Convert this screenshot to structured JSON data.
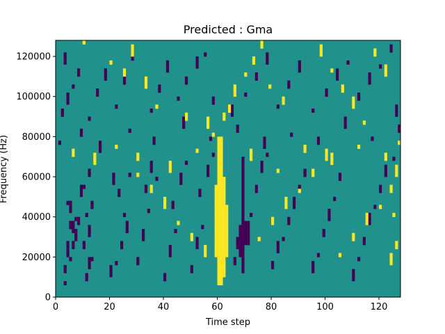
{
  "chart_data": {
    "type": "heatmap",
    "title": "Predicted : Gma",
    "xlabel": "Time step",
    "ylabel": "Frequency (Hz)",
    "xlim": [
      0,
      128
    ],
    "ylim": [
      0,
      128000
    ],
    "rows": 64,
    "cols": 128,
    "xticks": [
      0,
      20,
      40,
      60,
      80,
      100,
      120
    ],
    "yticks": [
      0,
      20000,
      40000,
      60000,
      80000,
      100000,
      120000
    ],
    "background_value": 0,
    "colors": {
      "background": "#21918c",
      "low": "#440154",
      "high": "#fde725",
      "frame": "#000000"
    },
    "grid": false,
    "high_regions": [
      {
        "x_range": [
          60,
          62
        ],
        "y_range": [
          3,
          40
        ]
      },
      {
        "x_range": [
          62,
          63
        ],
        "y_range": [
          5,
          30
        ]
      },
      {
        "x_range": [
          63,
          64
        ],
        "y_range": [
          10,
          23
        ]
      },
      {
        "x_range": [
          59,
          60
        ],
        "y_range": [
          10,
          28
        ]
      }
    ],
    "low_regions": [
      {
        "x_range": [
          69,
          70
        ],
        "y_range": [
          6,
          35
        ]
      },
      {
        "x_range": [
          68,
          69
        ],
        "y_range": [
          10,
          18
        ]
      },
      {
        "x_range": [
          70,
          72
        ],
        "y_range": [
          13,
          19
        ]
      }
    ],
    "low_cells": [
      [
        3,
        3
      ],
      [
        3,
        6
      ],
      [
        4,
        10
      ],
      [
        5,
        9
      ],
      [
        6,
        12
      ],
      [
        7,
        14
      ],
      [
        4,
        13
      ],
      [
        5,
        17
      ],
      [
        6,
        16
      ],
      [
        7,
        19
      ],
      [
        8,
        18
      ],
      [
        5,
        21
      ],
      [
        4,
        23
      ],
      [
        11,
        4
      ],
      [
        12,
        7
      ],
      [
        13,
        9
      ],
      [
        10,
        12
      ],
      [
        12,
        15
      ],
      [
        11,
        20
      ],
      [
        13,
        22
      ],
      [
        9,
        25
      ],
      [
        10,
        27
      ],
      [
        12,
        30
      ],
      [
        20,
        5
      ],
      [
        22,
        8
      ],
      [
        24,
        12
      ],
      [
        26,
        16
      ],
      [
        25,
        20
      ],
      [
        23,
        25
      ],
      [
        21,
        28
      ],
      [
        27,
        30
      ],
      [
        30,
        8
      ],
      [
        32,
        14
      ],
      [
        34,
        21
      ],
      [
        33,
        26
      ],
      [
        35,
        31
      ],
      [
        37,
        29
      ],
      [
        40,
        4
      ],
      [
        42,
        10
      ],
      [
        44,
        16
      ],
      [
        43,
        22
      ],
      [
        46,
        28
      ],
      [
        48,
        33
      ],
      [
        50,
        6
      ],
      [
        52,
        12
      ],
      [
        54,
        17
      ],
      [
        53,
        25
      ],
      [
        56,
        30
      ],
      [
        58,
        35
      ],
      [
        66,
        8
      ],
      [
        67,
        12
      ],
      [
        72,
        20
      ],
      [
        74,
        26
      ],
      [
        76,
        31
      ],
      [
        78,
        35
      ],
      [
        80,
        7
      ],
      [
        82,
        11
      ],
      [
        84,
        14
      ],
      [
        86,
        18
      ],
      [
        88,
        22
      ],
      [
        90,
        27
      ],
      [
        92,
        30
      ],
      [
        95,
        6
      ],
      [
        97,
        10
      ],
      [
        99,
        15
      ],
      [
        101,
        19
      ],
      [
        103,
        24
      ],
      [
        105,
        29
      ],
      [
        110,
        4
      ],
      [
        112,
        9
      ],
      [
        114,
        13
      ],
      [
        116,
        18
      ],
      [
        118,
        22
      ],
      [
        120,
        26
      ],
      [
        122,
        30
      ],
      [
        125,
        34
      ],
      [
        2,
        45
      ],
      [
        4,
        48
      ],
      [
        6,
        52
      ],
      [
        8,
        55
      ],
      [
        3,
        58
      ],
      [
        12,
        44
      ],
      [
        15,
        50
      ],
      [
        18,
        54
      ],
      [
        22,
        47
      ],
      [
        25,
        53
      ],
      [
        28,
        59
      ],
      [
        35,
        46
      ],
      [
        38,
        51
      ],
      [
        41,
        56
      ],
      [
        45,
        49
      ],
      [
        48,
        53
      ],
      [
        52,
        57
      ],
      [
        55,
        60
      ],
      [
        58,
        48
      ],
      [
        65,
        45
      ],
      [
        70,
        50
      ],
      [
        74,
        54
      ],
      [
        78,
        58
      ],
      [
        82,
        47
      ],
      [
        86,
        52
      ],
      [
        90,
        56
      ],
      [
        95,
        46
      ],
      [
        100,
        50
      ],
      [
        104,
        54
      ],
      [
        108,
        58
      ],
      [
        112,
        49
      ],
      [
        116,
        53
      ],
      [
        120,
        57
      ],
      [
        124,
        61
      ],
      [
        126,
        45
      ],
      [
        1,
        38
      ],
      [
        9,
        40
      ],
      [
        16,
        36
      ],
      [
        27,
        41
      ],
      [
        36,
        38
      ],
      [
        47,
        42
      ],
      [
        57,
        39
      ],
      [
        67,
        41
      ],
      [
        77,
        37
      ],
      [
        87,
        40
      ],
      [
        97,
        38
      ],
      [
        107,
        42
      ],
      [
        117,
        39
      ],
      [
        127,
        41
      ]
    ],
    "high_cells": [
      [
        10,
        63
      ],
      [
        28,
        60
      ],
      [
        20,
        58
      ],
      [
        25,
        55
      ],
      [
        33,
        52
      ],
      [
        37,
        47
      ],
      [
        48,
        44
      ],
      [
        56,
        42
      ],
      [
        58,
        40
      ],
      [
        64,
        46
      ],
      [
        66,
        50
      ],
      [
        70,
        55
      ],
      [
        73,
        58
      ],
      [
        76,
        62
      ],
      [
        79,
        52
      ],
      [
        84,
        48
      ],
      [
        98,
        60
      ],
      [
        102,
        56
      ],
      [
        106,
        51
      ],
      [
        110,
        47
      ],
      [
        114,
        43
      ],
      [
        118,
        60
      ],
      [
        122,
        55
      ],
      [
        30,
        30
      ],
      [
        35,
        26
      ],
      [
        40,
        22
      ],
      [
        45,
        18
      ],
      [
        50,
        14
      ],
      [
        55,
        10
      ],
      [
        75,
        14
      ],
      [
        80,
        18
      ],
      [
        85,
        22
      ],
      [
        90,
        26
      ],
      [
        95,
        30
      ],
      [
        100,
        34
      ],
      [
        105,
        10
      ],
      [
        110,
        14
      ],
      [
        115,
        18
      ],
      [
        120,
        22
      ],
      [
        124,
        26
      ],
      [
        126,
        30
      ],
      [
        125,
        20
      ],
      [
        126,
        12
      ],
      [
        124,
        8
      ],
      [
        127,
        38
      ],
      [
        6,
        35
      ],
      [
        14,
        33
      ],
      [
        22,
        37
      ],
      [
        30,
        34
      ],
      [
        42,
        31
      ],
      [
        52,
        36
      ],
      [
        62,
        44
      ],
      [
        72,
        34
      ],
      [
        82,
        31
      ],
      [
        92,
        36
      ],
      [
        102,
        33
      ],
      [
        112,
        37
      ],
      [
        122,
        34
      ]
    ]
  }
}
